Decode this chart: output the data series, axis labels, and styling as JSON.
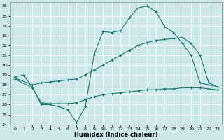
{
  "xlabel": "Humidex (Indice chaleur)",
  "background_color": "#cce8e8",
  "grid_color": "#ffffff",
  "line_color": "#1a7a6e",
  "xlim": [
    -0.5,
    23.5
  ],
  "ylim": [
    24,
    36.4
  ],
  "xticks": [
    0,
    1,
    2,
    3,
    4,
    5,
    6,
    7,
    8,
    9,
    10,
    11,
    12,
    13,
    14,
    15,
    16,
    17,
    18,
    19,
    20,
    21,
    22,
    23
  ],
  "yticks": [
    24,
    25,
    26,
    27,
    28,
    29,
    30,
    31,
    32,
    33,
    34,
    35,
    36
  ],
  "series": [
    {
      "x": [
        0,
        1,
        2,
        3,
        4,
        5,
        6,
        7,
        8,
        9,
        10,
        11,
        12,
        13,
        14,
        15,
        16,
        17,
        18,
        19,
        20,
        21,
        22,
        23
      ],
      "y": [
        28.8,
        29.0,
        27.7,
        26.0,
        26.0,
        25.8,
        25.5,
        24.2,
        25.8,
        31.1,
        33.4,
        33.3,
        33.5,
        34.8,
        35.8,
        36.0,
        35.4,
        33.9,
        33.3,
        32.2,
        31.0,
        28.2,
        28.0,
        27.8
      ]
    },
    {
      "x": [
        0,
        2,
        3,
        4,
        5,
        6,
        7,
        8,
        9,
        10,
        11,
        12,
        13,
        14,
        15,
        16,
        17,
        18,
        19,
        20,
        21,
        22,
        23
      ],
      "y": [
        28.7,
        28.0,
        28.2,
        28.3,
        28.4,
        28.5,
        28.6,
        29.0,
        29.5,
        30.0,
        30.5,
        31.0,
        31.5,
        32.0,
        32.3,
        32.5,
        32.6,
        32.7,
        32.8,
        32.2,
        31.0,
        28.2,
        27.8
      ]
    },
    {
      "x": [
        0,
        2,
        3,
        4,
        5,
        6,
        7,
        8,
        9,
        10,
        11,
        12,
        13,
        14,
        15,
        16,
        17,
        18,
        19,
        20,
        21,
        22,
        23
      ],
      "y": [
        28.6,
        27.7,
        26.2,
        26.1,
        26.1,
        26.1,
        26.2,
        26.5,
        26.8,
        27.0,
        27.1,
        27.2,
        27.3,
        27.4,
        27.5,
        27.5,
        27.6,
        27.6,
        27.7,
        27.7,
        27.7,
        27.6,
        27.5
      ]
    }
  ]
}
